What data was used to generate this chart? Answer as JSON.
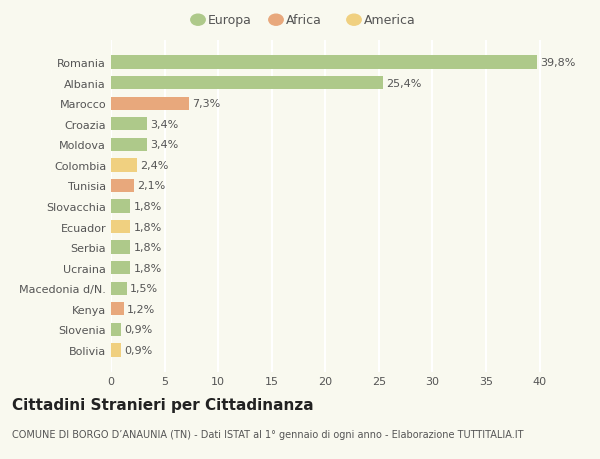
{
  "countries": [
    "Romania",
    "Albania",
    "Marocco",
    "Croazia",
    "Moldova",
    "Colombia",
    "Tunisia",
    "Slovacchia",
    "Ecuador",
    "Serbia",
    "Ucraina",
    "Macedonia d/N.",
    "Kenya",
    "Slovenia",
    "Bolivia"
  ],
  "values": [
    39.8,
    25.4,
    7.3,
    3.4,
    3.4,
    2.4,
    2.1,
    1.8,
    1.8,
    1.8,
    1.8,
    1.5,
    1.2,
    0.9,
    0.9
  ],
  "labels": [
    "39,8%",
    "25,4%",
    "7,3%",
    "3,4%",
    "3,4%",
    "2,4%",
    "2,1%",
    "1,8%",
    "1,8%",
    "1,8%",
    "1,8%",
    "1,5%",
    "1,2%",
    "0,9%",
    "0,9%"
  ],
  "continents": [
    "Europa",
    "Europa",
    "Africa",
    "Europa",
    "Europa",
    "America",
    "Africa",
    "Europa",
    "America",
    "Europa",
    "Europa",
    "Europa",
    "Africa",
    "Europa",
    "America"
  ],
  "colors": {
    "Europa": "#aec98a",
    "Africa": "#e8a87c",
    "America": "#f0d080"
  },
  "xlim": [
    0,
    42
  ],
  "xticks": [
    0,
    5,
    10,
    15,
    20,
    25,
    30,
    35,
    40
  ],
  "title": "Cittadini Stranieri per Cittadinanza",
  "subtitle": "COMUNE DI BORGO D’ANAUNIA (TN) - Dati ISTAT al 1° gennaio di ogni anno - Elaborazione TUTTITALIA.IT",
  "background_color": "#f9f9ef",
  "grid_color": "#ffffff",
  "bar_height": 0.65,
  "label_fontsize": 8,
  "title_fontsize": 11,
  "subtitle_fontsize": 7,
  "ytick_fontsize": 8,
  "xtick_fontsize": 8,
  "legend_fontsize": 9
}
